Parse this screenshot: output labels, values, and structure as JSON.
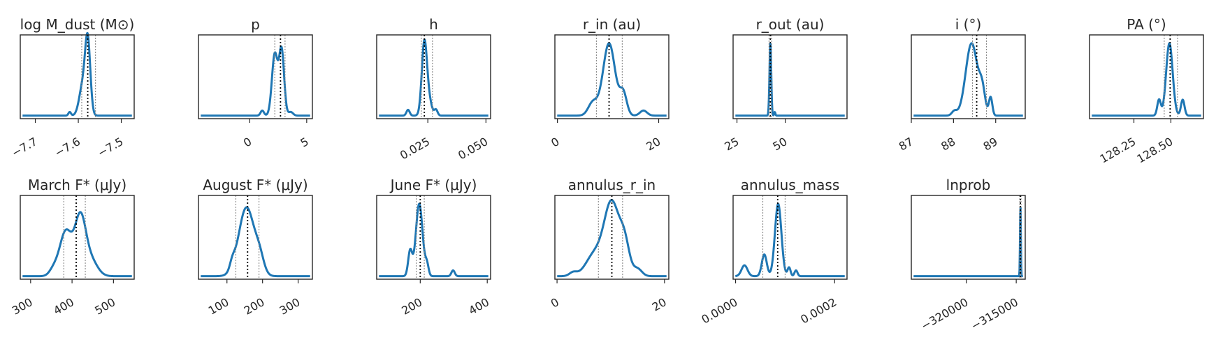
{
  "chart_data": [
    {
      "type": "line",
      "title": "log M_dust (M⊙)",
      "xlim": [
        -7.735,
        -7.47
      ],
      "xticks": [
        -7.7,
        -7.6,
        -7.5
      ],
      "xticklabels": [
        "−7.7",
        "−7.6",
        "−7.5"
      ],
      "median": -7.578,
      "ci": [
        -7.592,
        -7.56
      ],
      "peaks": [
        {
          "mu": -7.578,
          "sigma": 0.006,
          "amp": 1.0
        },
        {
          "mu": -7.59,
          "sigma": 0.008,
          "amp": 0.4
        },
        {
          "mu": -7.62,
          "sigma": 0.003,
          "amp": 0.05
        }
      ],
      "ylim": [
        0,
        1.1
      ]
    },
    {
      "type": "line",
      "title": "p",
      "xlim": [
        -4.5,
        5.5
      ],
      "xticks": [
        0,
        5
      ],
      "xticklabels": [
        "0",
        "5"
      ],
      "median": 2.7,
      "ci": [
        2.2,
        3.1
      ],
      "peaks": [
        {
          "mu": 2.2,
          "sigma": 0.25,
          "amp": 0.85
        },
        {
          "mu": 2.8,
          "sigma": 0.22,
          "amp": 0.9
        },
        {
          "mu": 1.1,
          "sigma": 0.15,
          "amp": 0.07
        },
        {
          "mu": 3.6,
          "sigma": 0.2,
          "amp": 0.05
        }
      ],
      "ylim": [
        0,
        1.1
      ]
    },
    {
      "type": "line",
      "title": "h",
      "xlim": [
        0.003,
        0.052
      ],
      "xticks": [
        0.025,
        0.05
      ],
      "xticklabels": [
        "0.025",
        "0.050"
      ],
      "median": 0.0235,
      "ci": [
        0.0222,
        0.027
      ],
      "peaks": [
        {
          "mu": 0.0235,
          "sigma": 0.0011,
          "amp": 1.0
        },
        {
          "mu": 0.0255,
          "sigma": 0.0012,
          "amp": 0.2
        },
        {
          "mu": 0.0165,
          "sigma": 0.0007,
          "amp": 0.08
        },
        {
          "mu": 0.0285,
          "sigma": 0.0007,
          "amp": 0.08
        }
      ],
      "ylim": [
        0,
        1.1
      ]
    },
    {
      "type": "line",
      "title": "r_in (au)",
      "xlim": [
        -0.5,
        22
      ],
      "xticks": [
        0,
        20
      ],
      "xticklabels": [
        "0",
        "20"
      ],
      "median": 10.2,
      "ci": [
        7.7,
        12.8
      ],
      "peaks": [
        {
          "mu": 10.2,
          "sigma": 1.2,
          "amp": 1.0
        },
        {
          "mu": 7.0,
          "sigma": 0.9,
          "amp": 0.18
        },
        {
          "mu": 13.0,
          "sigma": 0.7,
          "amp": 0.3
        },
        {
          "mu": 17.0,
          "sigma": 0.7,
          "amp": 0.07
        }
      ],
      "ylim": [
        0,
        1.1
      ]
    },
    {
      "type": "line",
      "title": "r_out (au)",
      "xlim": [
        23,
        82
      ],
      "xticks": [
        25,
        50
      ],
      "xticklabels": [
        "25",
        "50"
      ],
      "median": 42.3,
      "ci": [
        41.6,
        43.0
      ],
      "peaks": [
        {
          "mu": 42.3,
          "sigma": 0.45,
          "amp": 1.0
        },
        {
          "mu": 44.6,
          "sigma": 0.3,
          "amp": 0.05
        }
      ],
      "ylim": [
        0,
        1.1
      ]
    },
    {
      "type": "line",
      "title": "i (°)",
      "xlim": [
        87.0,
        89.7
      ],
      "xticks": [
        87,
        88,
        89
      ],
      "xticklabels": [
        "87",
        "88",
        "89"
      ],
      "median": 88.55,
      "ci": [
        88.45,
        88.78
      ],
      "peaks": [
        {
          "mu": 88.43,
          "sigma": 0.14,
          "amp": 1.0
        },
        {
          "mu": 88.68,
          "sigma": 0.07,
          "amp": 0.3
        },
        {
          "mu": 88.88,
          "sigma": 0.04,
          "amp": 0.25
        },
        {
          "mu": 88.02,
          "sigma": 0.06,
          "amp": 0.06
        }
      ],
      "ylim": [
        0,
        1.1
      ]
    },
    {
      "type": "line",
      "title": "PA  (°)",
      "xlim": [
        127.95,
        128.72
      ],
      "xticks": [
        128.25,
        128.5
      ],
      "xticklabels": [
        "128.25",
        "128.50"
      ],
      "median": 128.495,
      "ci": [
        128.455,
        128.545
      ],
      "peaks": [
        {
          "mu": 128.49,
          "sigma": 0.022,
          "amp": 1.0
        },
        {
          "mu": 128.42,
          "sigma": 0.012,
          "amp": 0.22
        },
        {
          "mu": 128.58,
          "sigma": 0.012,
          "amp": 0.22
        }
      ],
      "ylim": [
        0,
        1.1
      ]
    },
    {
      "type": "line",
      "title": "March F* (μJy)",
      "xlim": [
        275,
        550
      ],
      "xticks": [
        300,
        400,
        500
      ],
      "xticklabels": [
        "300",
        "400",
        "500"
      ],
      "median": 410,
      "ci": [
        380,
        432
      ],
      "peaks": [
        {
          "mu": 385,
          "sigma": 15,
          "amp": 0.62
        },
        {
          "mu": 420,
          "sigma": 13,
          "amp": 0.78
        },
        {
          "mu": 445,
          "sigma": 16,
          "amp": 0.22
        },
        {
          "mu": 355,
          "sigma": 10,
          "amp": 0.08
        }
      ],
      "ylim": [
        0,
        1.1
      ]
    },
    {
      "type": "line",
      "title": "August F* (μJy)",
      "xlim": [
        20,
        340
      ],
      "xticks": [
        100,
        200,
        300
      ],
      "xticklabels": [
        "100",
        "200",
        "300"
      ],
      "median": 158,
      "ci": [
        125,
        190
      ],
      "peaks": [
        {
          "mu": 155,
          "sigma": 22,
          "amp": 0.95
        },
        {
          "mu": 192,
          "sigma": 12,
          "amp": 0.2
        },
        {
          "mu": 115,
          "sigma": 7,
          "amp": 0.1
        }
      ],
      "ylim": [
        0,
        1.1
      ]
    },
    {
      "type": "line",
      "title": "June F* (μJy)",
      "xlim": [
        70,
        410
      ],
      "xticks": [
        200,
        400
      ],
      "xticklabels": [
        "200",
        "400"
      ],
      "median": 200,
      "ci": [
        188,
        212
      ],
      "peaks": [
        {
          "mu": 197,
          "sigma": 10,
          "amp": 1.0
        },
        {
          "mu": 170,
          "sigma": 6,
          "amp": 0.35
        },
        {
          "mu": 220,
          "sigma": 5,
          "amp": 0.15
        },
        {
          "mu": 298,
          "sigma": 5,
          "amp": 0.08
        }
      ],
      "ylim": [
        0,
        1.1
      ]
    },
    {
      "type": "line",
      "title": "annulus_r_in",
      "xlim": [
        -0.4,
        20.8
      ],
      "xticks": [
        0,
        20
      ],
      "xticklabels": [
        "0",
        "20"
      ],
      "median": 10.2,
      "ci": [
        7.7,
        12.2
      ],
      "peaks": [
        {
          "mu": 10.2,
          "sigma": 1.4,
          "amp": 1.0
        },
        {
          "mu": 7.0,
          "sigma": 1.6,
          "amp": 0.3
        },
        {
          "mu": 3.0,
          "sigma": 0.7,
          "amp": 0.05
        },
        {
          "mu": 12.6,
          "sigma": 0.9,
          "amp": 0.4
        },
        {
          "mu": 15.0,
          "sigma": 0.8,
          "amp": 0.1
        }
      ],
      "ylim": [
        0,
        1.1
      ]
    },
    {
      "type": "line",
      "title": "annulus_mass",
      "xlim": [
        -5e-06,
        0.000225
      ],
      "xticks": [
        0.0,
        0.0002
      ],
      "xticklabels": [
        "0.0000",
        "0.0002"
      ],
      "median": 8.5e-05,
      "ci": [
        5.5e-05,
        0.0001
      ],
      "peaks": [
        {
          "mu": 8.6e-05,
          "sigma": 6.5e-06,
          "amp": 1.0
        },
        {
          "mu": 5.8e-05,
          "sigma": 5e-06,
          "amp": 0.3
        },
        {
          "mu": 1.8e-05,
          "sigma": 6e-06,
          "amp": 0.15
        },
        {
          "mu": 0.000108,
          "sigma": 3e-06,
          "amp": 0.12
        },
        {
          "mu": 0.000122,
          "sigma": 3e-06,
          "amp": 0.08
        }
      ],
      "ylim": [
        0,
        1.1
      ]
    },
    {
      "type": "line",
      "title": "lnprob",
      "xlim": [
        -325500,
        -314100
      ],
      "xticks": [
        -320000,
        -315000
      ],
      "xticklabels": [
        "−320000",
        "−315000"
      ],
      "median": -314580,
      "ci": [
        -314650,
        -314520
      ],
      "peaks": [
        {
          "mu": -314580,
          "sigma": 40,
          "amp": 1.0
        }
      ],
      "ylim": [
        0,
        1.1
      ]
    }
  ]
}
